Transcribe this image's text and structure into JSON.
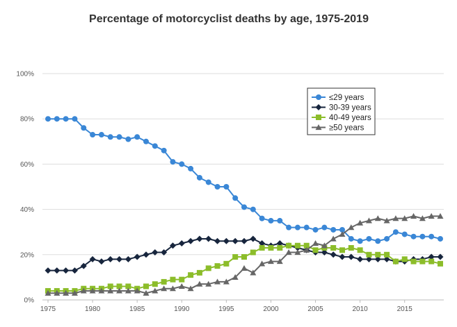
{
  "chart_data": {
    "type": "line",
    "title": "Percentage of motorcyclist deaths by age, 1975-2019",
    "xlabel": "",
    "ylabel": "",
    "xlim": [
      1975,
      2019
    ],
    "ylim": [
      0,
      100
    ],
    "x_ticks": [
      1975,
      1980,
      1985,
      1990,
      1995,
      2000,
      2005,
      2010,
      2015
    ],
    "y_ticks": [
      0,
      20,
      40,
      60,
      80,
      100
    ],
    "y_tick_labels": [
      "0%",
      "20%",
      "40%",
      "60%",
      "80%",
      "100%"
    ],
    "grid": true,
    "legend_position": "top-right",
    "x": [
      1975,
      1976,
      1977,
      1978,
      1979,
      1980,
      1981,
      1982,
      1983,
      1984,
      1985,
      1986,
      1987,
      1988,
      1989,
      1990,
      1991,
      1992,
      1993,
      1994,
      1995,
      1996,
      1997,
      1998,
      1999,
      2000,
      2001,
      2002,
      2003,
      2004,
      2005,
      2006,
      2007,
      2008,
      2009,
      2010,
      2011,
      2012,
      2013,
      2014,
      2015,
      2016,
      2017,
      2018,
      2019
    ],
    "series": [
      {
        "name": "≤29 years",
        "color": "#3a87d6",
        "marker": "circle",
        "values": [
          80,
          80,
          80,
          80,
          76,
          73,
          73,
          72,
          72,
          71,
          72,
          70,
          68,
          66,
          61,
          60,
          58,
          54,
          52,
          50,
          50,
          45,
          41,
          40,
          36,
          35,
          35,
          32,
          32,
          32,
          31,
          32,
          31,
          31,
          27,
          26,
          27,
          26,
          27,
          30,
          29,
          28,
          28,
          28,
          27
        ]
      },
      {
        "name": "30-39 years",
        "color": "#17253d",
        "marker": "diamond",
        "values": [
          13,
          13,
          13,
          13,
          15,
          18,
          17,
          18,
          18,
          18,
          19,
          20,
          21,
          21,
          24,
          25,
          26,
          27,
          27,
          26,
          26,
          26,
          26,
          27,
          25,
          24,
          25,
          24,
          23,
          22,
          21,
          21,
          20,
          19,
          19,
          18,
          18,
          18,
          18,
          17,
          17,
          18,
          18,
          19,
          19
        ]
      },
      {
        "name": "40-49 years",
        "color": "#8cbd2a",
        "marker": "square",
        "values": [
          4,
          4,
          4,
          4,
          5,
          5,
          5,
          6,
          6,
          6,
          5,
          6,
          7,
          8,
          9,
          9,
          11,
          12,
          14,
          15,
          16,
          19,
          19,
          21,
          23,
          23,
          23,
          24,
          24,
          24,
          22,
          23,
          23,
          22,
          23,
          22,
          20,
          20,
          20,
          17,
          18,
          17,
          17,
          17,
          16
        ]
      },
      {
        "name": "≥50 years",
        "color": "#666666",
        "marker": "triangle",
        "values": [
          3,
          3,
          3,
          3,
          4,
          4,
          4,
          4,
          4,
          4,
          4,
          3,
          4,
          5,
          5,
          6,
          5,
          7,
          7,
          8,
          8,
          10,
          14,
          12,
          16,
          17,
          17,
          21,
          21,
          22,
          25,
          24,
          27,
          29,
          32,
          34,
          35,
          36,
          35,
          36,
          36,
          37,
          36,
          37,
          37
        ]
      }
    ]
  }
}
